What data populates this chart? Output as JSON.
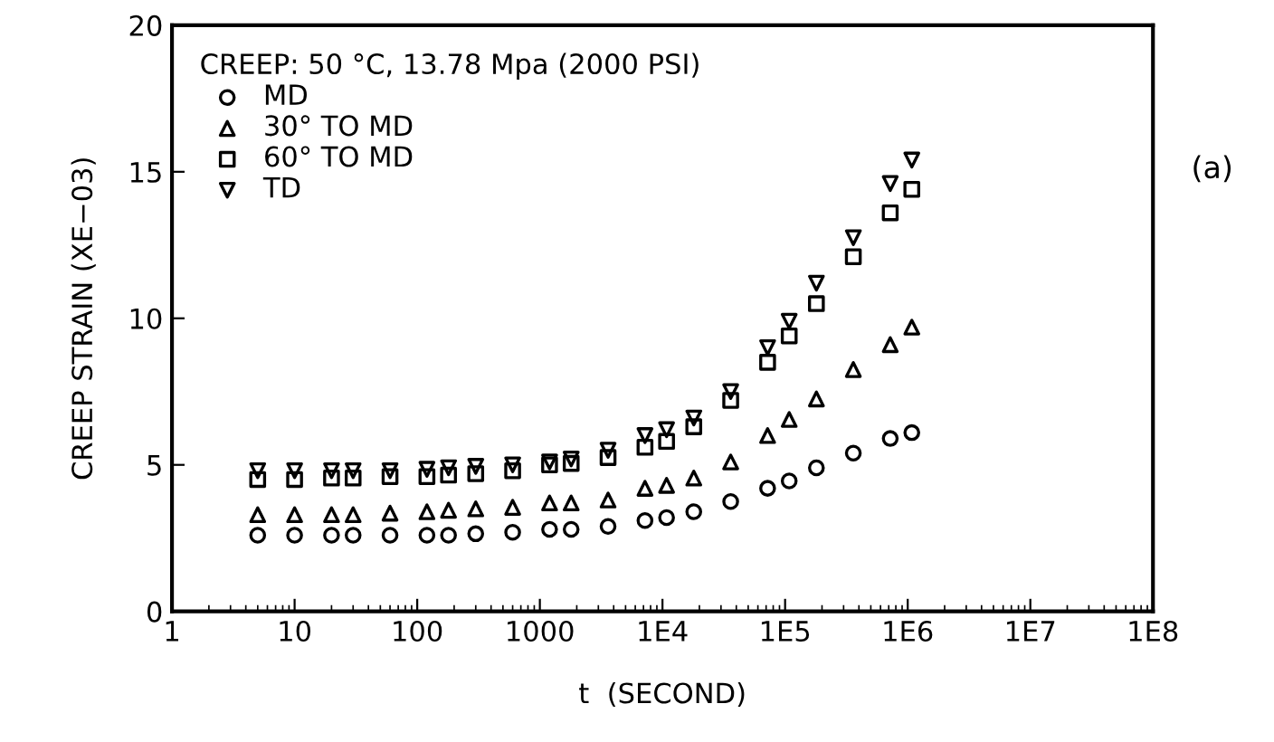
{
  "chart_data": {
    "type": "scatter",
    "xlabel": "t  (SECOND)",
    "ylabel": "CREEP STRAIN (XE−03)",
    "legend_title": "CREEP: 50 °C, 13.78 Mpa (2000 PSI)",
    "annotations": [
      "(a)"
    ],
    "x": [
      5,
      10,
      20,
      30,
      60,
      120,
      180,
      300,
      600,
      1200,
      1800,
      3600,
      7200,
      10800,
      18000,
      36000,
      72000,
      108000,
      180000,
      360000,
      720000,
      1080000
    ],
    "series": [
      {
        "name": "MD",
        "color": "#000000",
        "marker": "circle",
        "values": [
          2.6,
          2.6,
          2.6,
          2.6,
          2.6,
          2.6,
          2.6,
          2.65,
          2.7,
          2.8,
          2.8,
          2.9,
          3.1,
          3.2,
          3.4,
          3.75,
          4.2,
          4.45,
          4.9,
          5.4,
          5.9,
          6.1
        ]
      },
      {
        "name": "30° TO MD",
        "color": "#000000",
        "marker": "triangle",
        "values": [
          3.3,
          3.3,
          3.3,
          3.3,
          3.35,
          3.4,
          3.45,
          3.5,
          3.55,
          3.7,
          3.7,
          3.8,
          4.2,
          4.3,
          4.55,
          5.1,
          6.0,
          6.55,
          7.25,
          8.25,
          9.1,
          9.7
        ]
      },
      {
        "name": "60° TO MD",
        "color": "#000000",
        "marker": "square",
        "values": [
          4.5,
          4.5,
          4.55,
          4.55,
          4.6,
          4.6,
          4.65,
          4.7,
          4.8,
          5.0,
          5.05,
          5.25,
          5.6,
          5.8,
          6.3,
          7.2,
          8.5,
          9.4,
          10.5,
          12.1,
          13.6,
          14.4
        ]
      },
      {
        "name": "TD",
        "color": "#000000",
        "marker": "triangle_down",
        "values": [
          4.8,
          4.8,
          4.8,
          4.8,
          4.8,
          4.85,
          4.9,
          4.95,
          5.0,
          5.1,
          5.2,
          5.5,
          6.0,
          6.2,
          6.6,
          7.5,
          9.0,
          9.9,
          11.2,
          12.75,
          14.6,
          15.4
        ]
      }
    ],
    "log": "x",
    "xlim": [
      1,
      100000000
    ],
    "ylim": [
      0,
      20
    ],
    "xticks": [
      1,
      10,
      100,
      1000,
      {
        "value": 10000,
        "label": "1E4"
      },
      {
        "value": 100000,
        "label": "1E5"
      },
      {
        "value": 1000000,
        "label": "1E6"
      },
      {
        "value": 10000000,
        "label": "1E7"
      },
      {
        "value": 100000000,
        "label": "1E8"
      }
    ],
    "yticks": [
      0,
      5,
      10,
      15,
      20
    ],
    "grid": false,
    "legend": "top left"
  }
}
